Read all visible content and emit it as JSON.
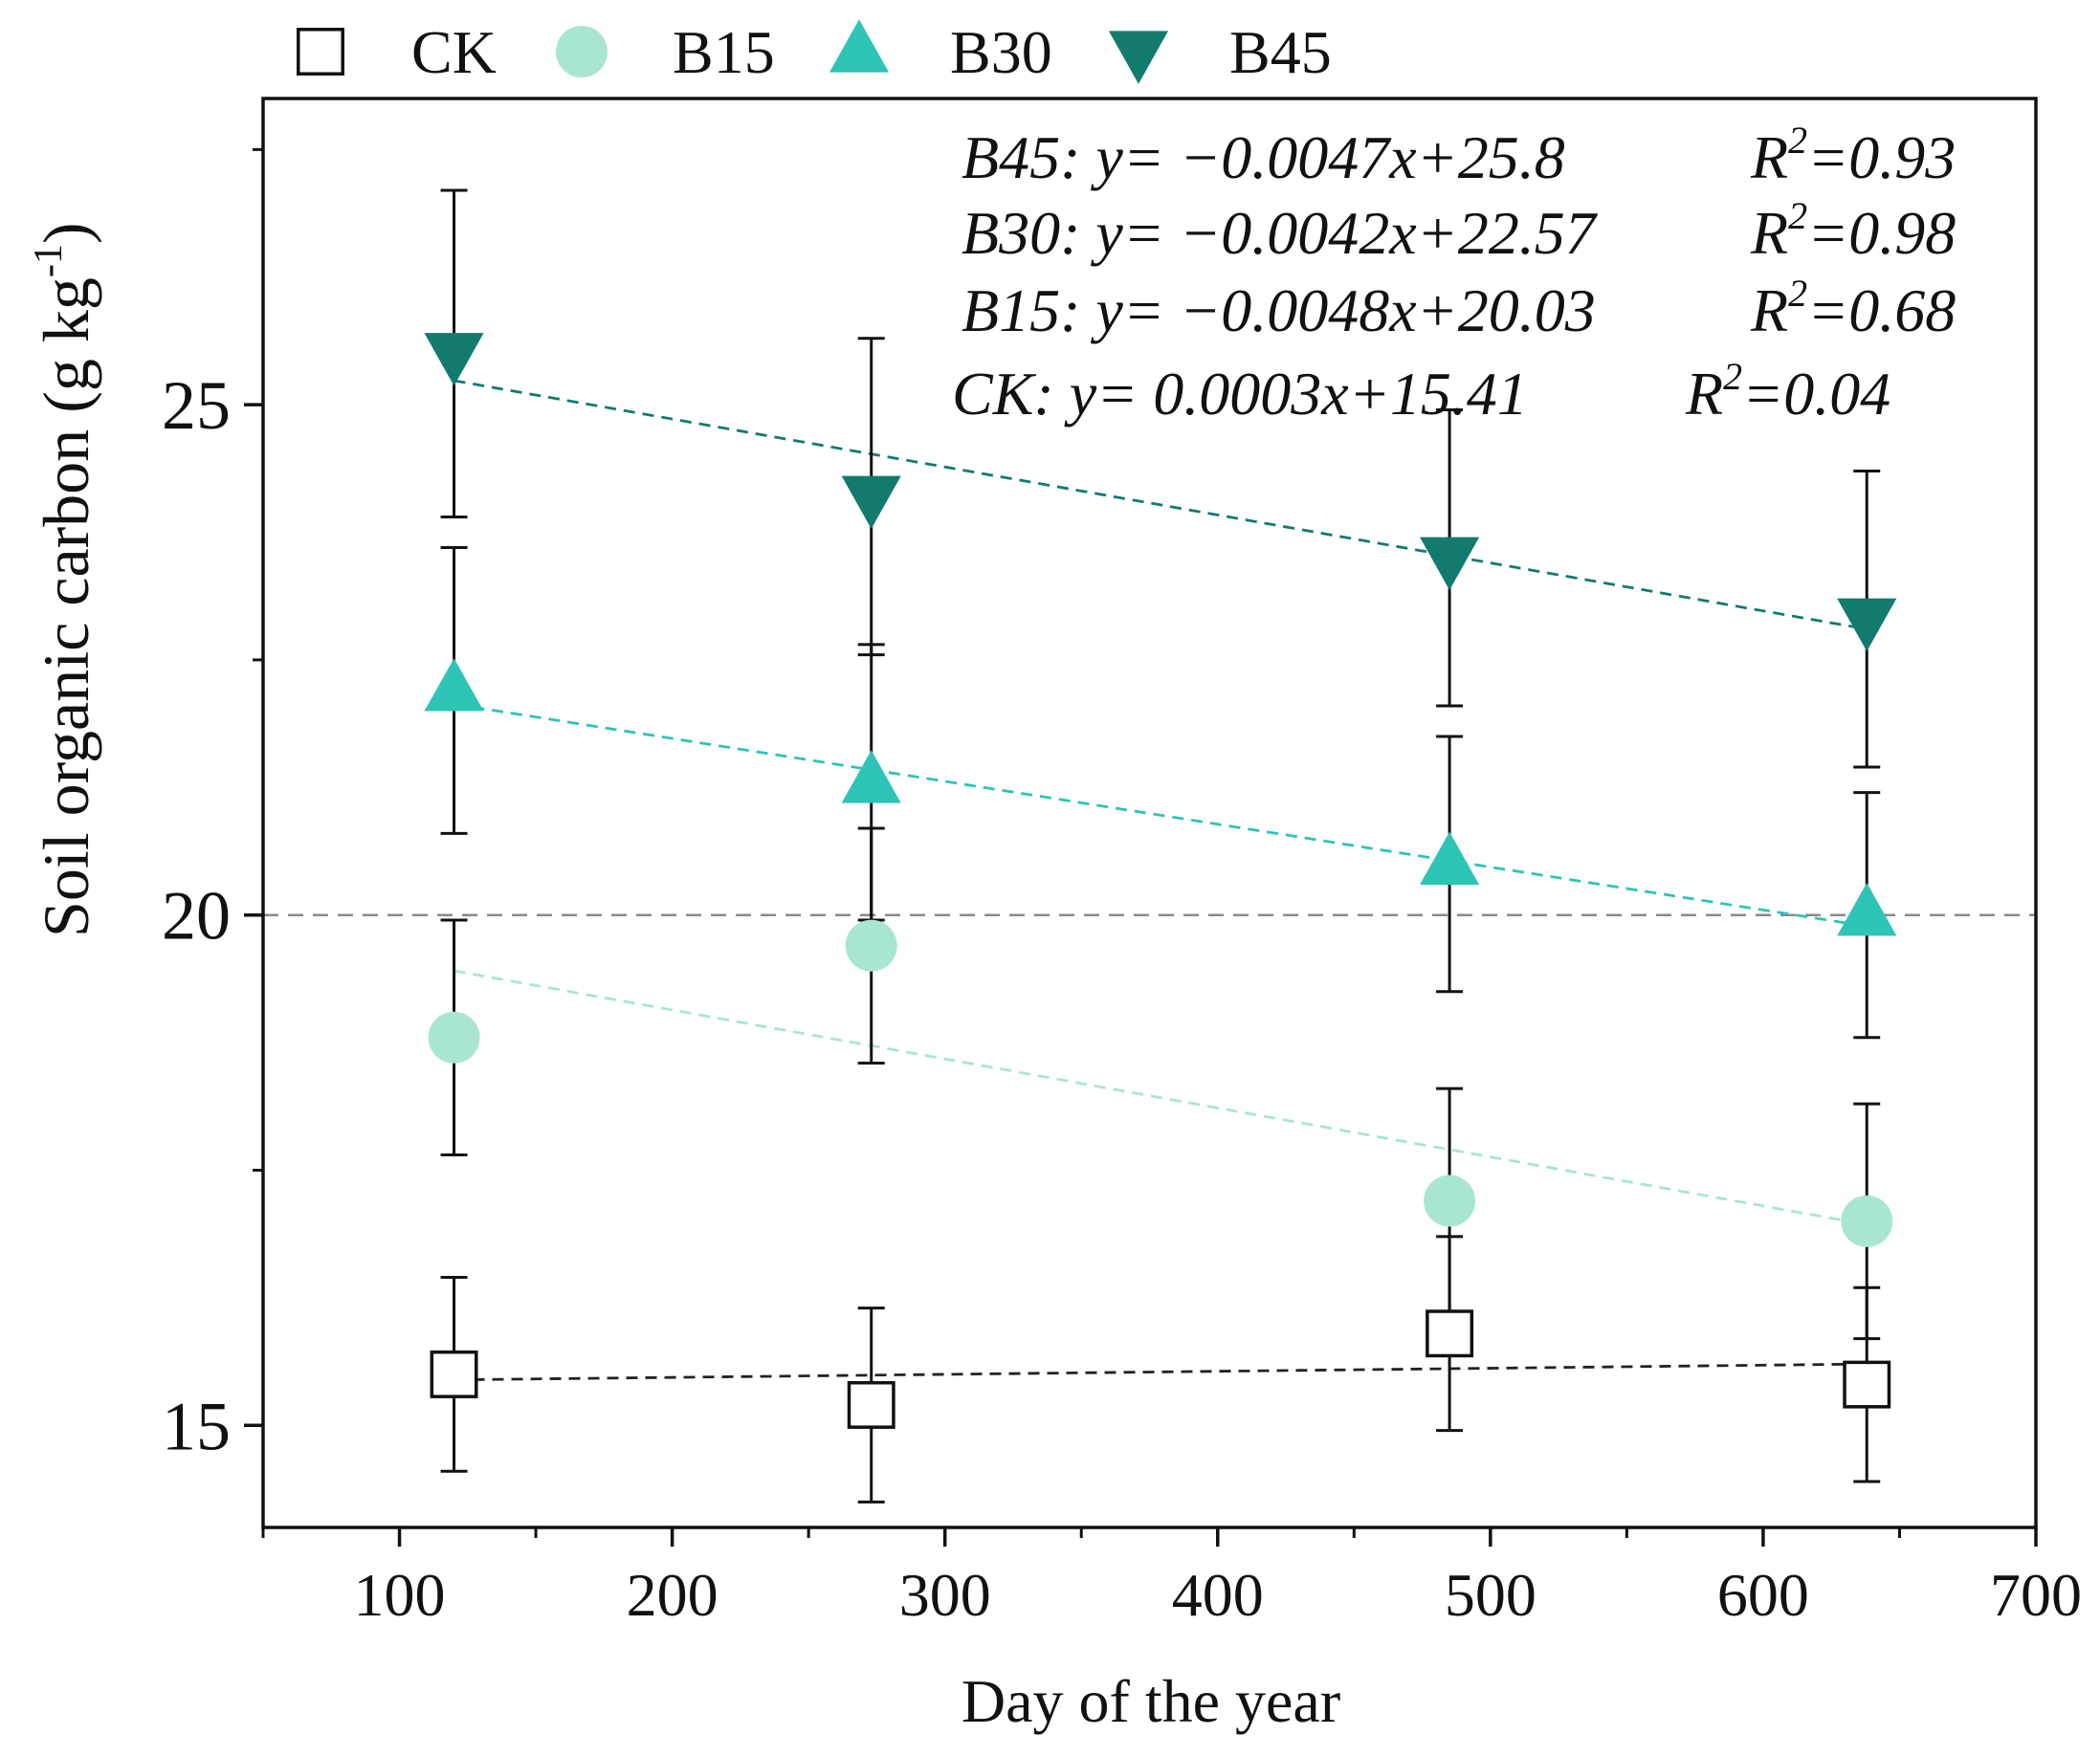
{
  "chart_data": {
    "type": "scatter",
    "title": "",
    "xlabel": "Day of the year",
    "ylabel_main": "Soil organic carbon (g kg",
    "ylabel_sup": "-1",
    "ylabel_close": ")",
    "xlim": [
      50,
      700
    ],
    "ylim": [
      14,
      28
    ],
    "xticks": [
      100,
      200,
      300,
      400,
      500,
      600,
      700
    ],
    "xtick_labels": [
      "100",
      "200",
      "300",
      "400",
      "500",
      "600",
      "700"
    ],
    "yticks": [
      15,
      20,
      25
    ],
    "ytick_labels": [
      "15",
      "20",
      "25"
    ],
    "reference_line_y": 20,
    "legend": [
      {
        "name": "CK",
        "marker": "square"
      },
      {
        "name": "B15",
        "marker": "circle"
      },
      {
        "name": "B30",
        "marker": "triangle-up"
      },
      {
        "name": "B45",
        "marker": "triangle-down"
      }
    ],
    "x": [
      120,
      273,
      485,
      638
    ],
    "series": [
      {
        "name": "CK",
        "marker": "square",
        "color": "#ffffff",
        "stroke": "#111111",
        "fit_color": "#222222",
        "values": [
          15.5,
          15.2,
          15.9,
          15.4
        ],
        "errors": [
          0.95,
          0.95,
          0.95,
          0.95
        ],
        "fit": {
          "slope": 0.0003,
          "intercept": 15.41
        }
      },
      {
        "name": "B15",
        "marker": "circle",
        "color": "#a8e6d2",
        "stroke": "#a8e6d2",
        "fit_color": "#a8e6d2",
        "values": [
          18.8,
          19.7,
          17.2,
          17.0
        ],
        "errors": [
          1.15,
          1.15,
          1.1,
          1.15
        ],
        "fit": {
          "slope": -0.0048,
          "intercept": 20.03
        }
      },
      {
        "name": "B30",
        "marker": "triangle-up",
        "color": "#2ec4b6",
        "stroke": "#2ec4b6",
        "fit_color": "#2ec4b6",
        "values": [
          22.2,
          21.3,
          20.5,
          20.0
        ],
        "errors": [
          1.4,
          1.35,
          1.25,
          1.2
        ],
        "fit": {
          "slope": -0.0042,
          "intercept": 22.57
        }
      },
      {
        "name": "B45",
        "marker": "triangle-down",
        "color": "#137a6e",
        "stroke": "#137a6e",
        "fit_color": "#137a6e",
        "values": [
          25.5,
          24.1,
          23.5,
          22.9
        ],
        "errors": [
          1.6,
          1.55,
          1.45,
          1.45
        ],
        "fit": {
          "slope": -0.0047,
          "intercept": 25.8
        }
      }
    ],
    "annotations": [
      {
        "label": "B45: y= −0.0047x+25.8",
        "r2_label": "R",
        "r2_sup": "2",
        "r2_value": "=0.93"
      },
      {
        "label": "B30: y= −0.0042x+22.57",
        "r2_label": "R",
        "r2_sup": "2",
        "r2_value": "=0.98"
      },
      {
        "label": "B15: y= −0.0048x+20.03",
        "r2_label": "R",
        "r2_sup": "2",
        "r2_value": "=0.68"
      },
      {
        "label": "CK: y= 0.0003x+15.41",
        "r2_label": "R",
        "r2_sup": "2",
        "r2_value": "=0.04"
      }
    ]
  }
}
